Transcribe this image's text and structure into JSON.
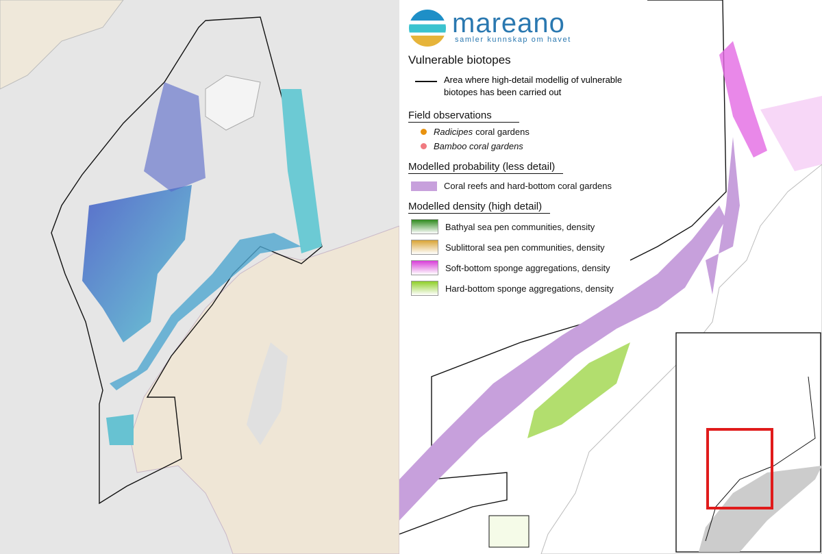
{
  "logo": {
    "name": "mareano",
    "tagline": "samler kunnskap om havet"
  },
  "legend": {
    "title": "Vulnerable biotopes",
    "boundary": "Area where high-detail modellig of vulnerable biotopes has been carried out",
    "sections": [
      {
        "title": "Field observations",
        "symbol": "dot",
        "items": [
          {
            "italic": "Radicipes",
            "label": "coral gardens",
            "color": "#e8920f"
          },
          {
            "italic": "Bamboo coral gardens",
            "color": "#f07a80"
          }
        ]
      },
      {
        "title": "Modelled probability (less detail)",
        "symbol": "box",
        "items": [
          {
            "label": "Coral reefs and hard-bottom coral gardens",
            "color": "#c7a0dc"
          }
        ]
      },
      {
        "title": "Modelled density (high detail)",
        "symbol": "gradient",
        "items": [
          {
            "label": "Bathyal sea pen communities, density",
            "color": "#2f8a1e"
          },
          {
            "label": "Sublittoral sea pen communities, density",
            "color": "#d9a436"
          },
          {
            "label": "Soft-bottom sponge aggregations, density",
            "color": "#d83fd8"
          },
          {
            "label": "Hard-bottom sponge aggregations, density",
            "color": "#8fcf2a"
          }
        ]
      }
    ]
  }
}
